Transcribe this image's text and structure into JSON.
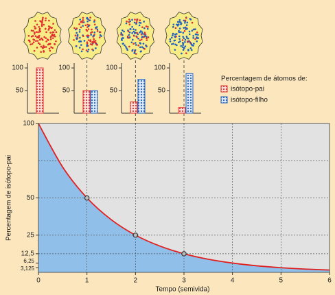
{
  "chart_data": [
    {
      "type": "line",
      "ylabel": "Percentagem de isótopo-pai",
      "xlabel": "Tempo (semivida)",
      "xlim": [
        0,
        6
      ],
      "ylim": [
        0,
        100
      ],
      "xticks": [
        0,
        1,
        2,
        3,
        4,
        5,
        6
      ],
      "yticks": [
        100,
        50,
        25,
        {
          "value": 12.5,
          "label": "12,5"
        },
        {
          "value": 6.25,
          "label": "6,25"
        },
        {
          "value": 3.125,
          "label": "3,125"
        }
      ],
      "ygrid": [
        75,
        50,
        25,
        12.5
      ],
      "xgrid": [
        1,
        2,
        3,
        4,
        5
      ],
      "curve": {
        "color": "#e02020",
        "fill": "#90c0ea",
        "x": [
          0,
          0.5,
          1,
          1.5,
          2,
          2.5,
          3,
          3.5,
          4,
          4.5,
          5,
          5.5,
          6
        ],
        "values": [
          100,
          70.7,
          50,
          35.4,
          25,
          17.7,
          12.5,
          8.8,
          6.25,
          4.4,
          3.125,
          2.2,
          1.56
        ]
      },
      "points": {
        "x": [
          1,
          2,
          3
        ],
        "values": [
          50,
          25,
          12.5
        ]
      }
    },
    {
      "type": "bar",
      "title": "Percentagem de átomos de:",
      "ylim": [
        0,
        100
      ],
      "yticks": [
        100,
        50
      ],
      "series": [
        {
          "name": "isótopo-pai",
          "color": "#e03030",
          "values": [
            100,
            50,
            25,
            12.5
          ]
        },
        {
          "name": "isótopo-filho",
          "color": "#2060c0",
          "values": [
            0,
            50,
            75,
            87.5
          ]
        }
      ]
    }
  ]
}
